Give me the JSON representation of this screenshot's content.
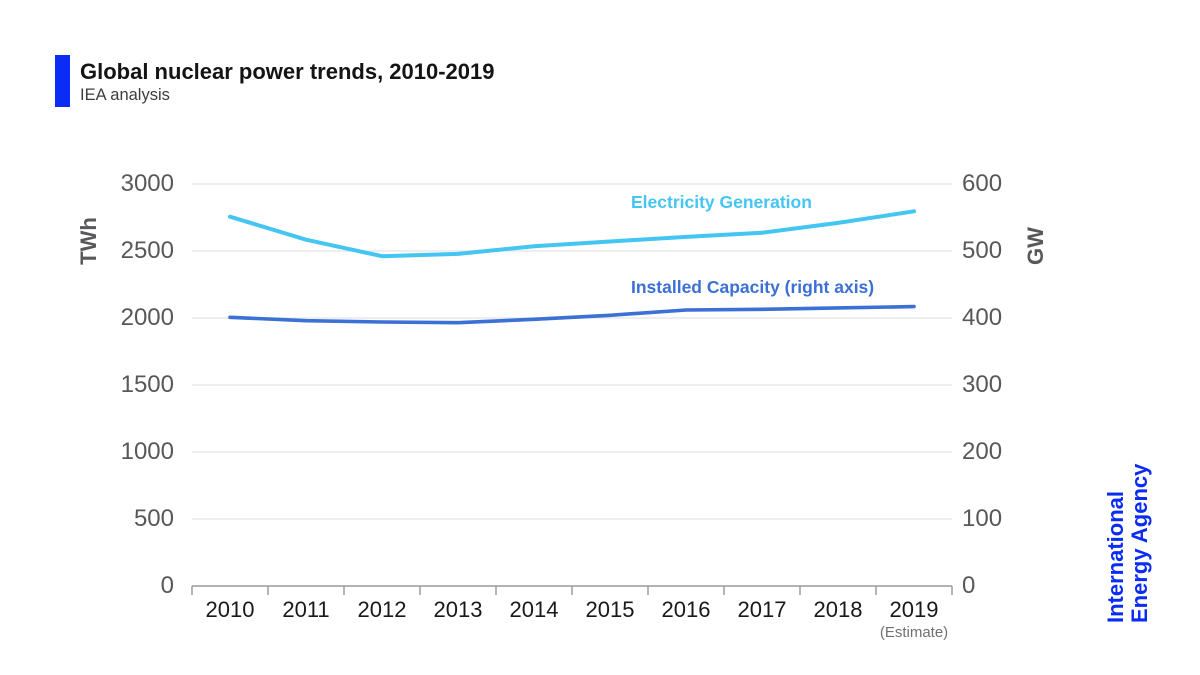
{
  "header": {
    "title": "Global nuclear power trends, 2010-2019",
    "subtitle": "IEA analysis"
  },
  "chart_data": {
    "type": "line",
    "x": [
      2010,
      2011,
      2012,
      2013,
      2014,
      2015,
      2016,
      2017,
      2018,
      2019
    ],
    "x_note": "(Estimate)",
    "series": [
      {
        "name": "Electricity Generation",
        "axis": "left",
        "unit": "TWh",
        "color": "#44c5f2",
        "values": [
          2756,
          2584,
          2461,
          2478,
          2535,
          2571,
          2605,
          2636,
          2710,
          2796
        ]
      },
      {
        "name": "Installed Capacity (right axis)",
        "axis": "right",
        "unit": "GW",
        "color": "#3b70d5",
        "values": [
          401,
          396,
          394,
          393,
          398,
          404,
          412,
          413,
          415,
          417
        ]
      }
    ],
    "left_axis": {
      "label": "TWh",
      "ticks": [
        0,
        500,
        1000,
        1500,
        2000,
        2500,
        3000
      ],
      "range": [
        0,
        3000
      ]
    },
    "right_axis": {
      "label": "GW",
      "ticks": [
        0,
        100,
        200,
        300,
        400,
        500,
        600
      ],
      "range": [
        0,
        600
      ]
    },
    "grid": "horizontal",
    "legend": "inline-labels"
  },
  "branding": {
    "line1": "International",
    "line2": "Energy Agency",
    "color": "#0a2cf5"
  },
  "colors": {
    "accent": "#0a2cf5",
    "grid": "#e8e8e8",
    "axis": "#9c9c9c"
  }
}
